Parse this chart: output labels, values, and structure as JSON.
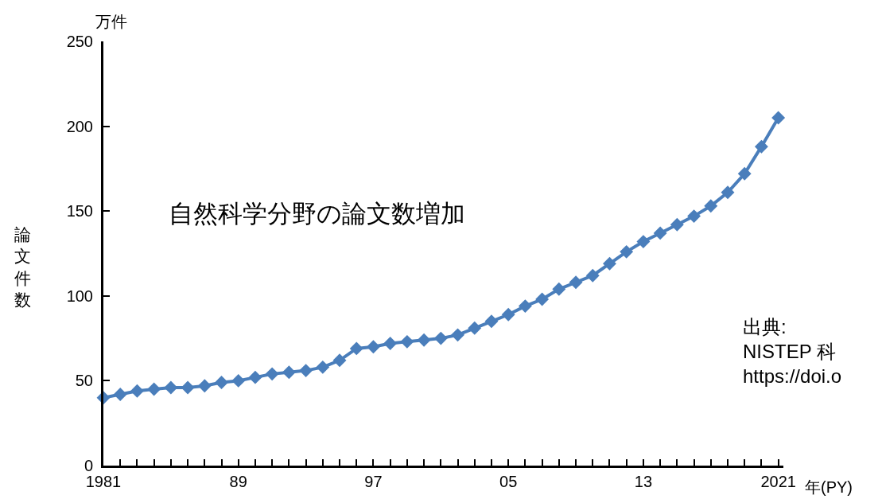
{
  "chart_data": {
    "type": "line",
    "x": [
      1981,
      1982,
      1983,
      1984,
      1985,
      1986,
      1987,
      1988,
      1989,
      1990,
      1991,
      1992,
      1993,
      1994,
      1995,
      1996,
      1997,
      1998,
      1999,
      2000,
      2001,
      2002,
      2003,
      2004,
      2005,
      2006,
      2007,
      2008,
      2009,
      2010,
      2011,
      2012,
      2013,
      2014,
      2015,
      2016,
      2017,
      2018,
      2019,
      2020,
      2021
    ],
    "series": [
      {
        "color": "#4a7ebb",
        "values": [
          40,
          42,
          44,
          45,
          46,
          46,
          47,
          49,
          50,
          52,
          54,
          55,
          56,
          58,
          62,
          69,
          70,
          72,
          73,
          74,
          75,
          77,
          81,
          85,
          89,
          94,
          98,
          104,
          108,
          112,
          119,
          126,
          132,
          137,
          142,
          147,
          153,
          161,
          172,
          188,
          205
        ]
      }
    ],
    "ylabel": "論文件数",
    "xlabel": "年(PY)",
    "annotations": [
      "万件",
      "自然科学分野の論文数増加",
      "出典:\nNISTEP 科\nhttps://doi.o"
    ],
    "xlim": [
      1981,
      2021.3
    ],
    "xticks": [
      {
        "value": 1981,
        "label": "1981"
      },
      {
        "value": 1982,
        "label": null
      },
      {
        "value": 1983,
        "label": null
      },
      {
        "value": 1984,
        "label": null
      },
      {
        "value": 1985,
        "label": null
      },
      {
        "value": 1986,
        "label": null
      },
      {
        "value": 1987,
        "label": null
      },
      {
        "value": 1988,
        "label": null
      },
      {
        "value": 1989,
        "label": "89"
      },
      {
        "value": 1990,
        "label": null
      },
      {
        "value": 1991,
        "label": null
      },
      {
        "value": 1992,
        "label": null
      },
      {
        "value": 1993,
        "label": null
      },
      {
        "value": 1994,
        "label": null
      },
      {
        "value": 1995,
        "label": null
      },
      {
        "value": 1996,
        "label": null
      },
      {
        "value": 1997,
        "label": "97"
      },
      {
        "value": 1998,
        "label": null
      },
      {
        "value": 1999,
        "label": null
      },
      {
        "value": 2000,
        "label": null
      },
      {
        "value": 2001,
        "label": null
      },
      {
        "value": 2002,
        "label": null
      },
      {
        "value": 2003,
        "label": null
      },
      {
        "value": 2004,
        "label": null
      },
      {
        "value": 2005,
        "label": "05"
      },
      {
        "value": 2006,
        "label": null
      },
      {
        "value": 2007,
        "label": null
      },
      {
        "value": 2008,
        "label": null
      },
      {
        "value": 2009,
        "label": null
      },
      {
        "value": 2010,
        "label": null
      },
      {
        "value": 2011,
        "label": null
      },
      {
        "value": 2012,
        "label": null
      },
      {
        "value": 2013,
        "label": "13"
      },
      {
        "value": 2014,
        "label": null
      },
      {
        "value": 2015,
        "label": null
      },
      {
        "value": 2016,
        "label": null
      },
      {
        "value": 2017,
        "label": null
      },
      {
        "value": 2018,
        "label": null
      },
      {
        "value": 2019,
        "label": null
      },
      {
        "value": 2020,
        "label": null
      },
      {
        "value": 2021,
        "label": "2021"
      }
    ],
    "ylim": [
      0,
      250
    ],
    "yticks": [
      0,
      50,
      100,
      150,
      200,
      250
    ],
    "grid": false,
    "marker": "diamond",
    "line_style": "solid"
  }
}
